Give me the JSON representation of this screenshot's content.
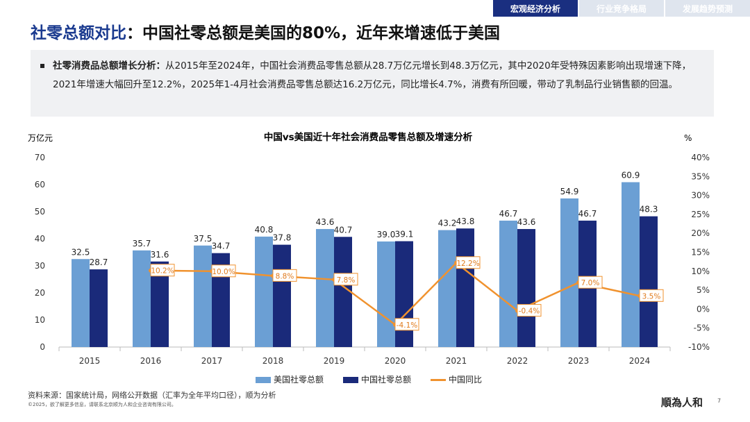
{
  "nav": {
    "tabs": [
      "宏观经济分析",
      "行业竞争格局",
      "发展趋势预测"
    ],
    "active": 0
  },
  "title": {
    "highlight": "社零总额对比",
    "rest": "：中国社零总额是美国的80%，近年来增速低于美国"
  },
  "summary": {
    "label": "社零消费品总额增长分析：",
    "text": "从2015年至2024年，中国社会消费品零售总额从28.7万亿元增长到48.3万亿元，其中2020年受特殊因素影响出现增速下降，2021年增速大幅回升至12.2%，2025年1-4月社会消费品零售总额达16.2万亿元，同比增长4.7%，消费有所回暖，带动了乳制品行业销售额的回温。"
  },
  "chart_data": {
    "type": "bar",
    "title": "中国vs美国近十年社会消费品零售总额及增速分析",
    "ylabel": "万亿元",
    "y2label": "%",
    "ylim": [
      0,
      70
    ],
    "yticks": [
      "0",
      "10",
      "20",
      "30",
      "40",
      "50",
      "60",
      "70"
    ],
    "y2lim": [
      -10,
      40
    ],
    "y2ticks": [
      "-10%",
      "-5%",
      "0%",
      "5%",
      "10%",
      "15%",
      "20%",
      "25%",
      "30%",
      "35%",
      "40%"
    ],
    "categories": [
      "2015",
      "2016",
      "2017",
      "2018",
      "2019",
      "2020",
      "2021",
      "2022",
      "2023",
      "2024"
    ],
    "series": [
      {
        "name": "美国社零总额",
        "type": "bar",
        "color": "#6b9fd4",
        "values": [
          32.5,
          35.7,
          37.5,
          40.8,
          43.6,
          39.0,
          43.2,
          46.7,
          54.9,
          60.9
        ],
        "labels": [
          "32.5",
          "35.7",
          "37.5",
          "40.8",
          "43.6",
          "39.0",
          "43.2",
          "46.7",
          "54.9",
          "60.9"
        ]
      },
      {
        "name": "中国社零总额",
        "type": "bar",
        "color": "#1a2a7a",
        "values": [
          28.7,
          31.6,
          34.7,
          37.8,
          40.7,
          39.1,
          43.8,
          43.6,
          46.7,
          48.3
        ],
        "labels": [
          "28.7",
          "31.6",
          "34.7",
          "37.8",
          "40.7",
          "39.1",
          "43.8",
          "43.6",
          "46.7",
          "48.3"
        ]
      },
      {
        "name": "中国同比",
        "type": "line",
        "axis": "right",
        "color": "#f0922e",
        "values": [
          null,
          10.2,
          10.0,
          8.8,
          7.8,
          -4.1,
          12.2,
          -0.4,
          7.0,
          3.5
        ],
        "labels": [
          "",
          "10.2%",
          "10.0%",
          "8.8%",
          "7.8%",
          "-4.1%",
          "12.2%",
          "-0.4%",
          "7.0%",
          "3.5%"
        ]
      }
    ],
    "legend": "bottom"
  },
  "footer": {
    "source": "资料来源：国家统计局，网络公开数据（汇率为全年平均口径），顺为分析",
    "copyright": "©2025，欲了解更多信息，请联系北京顺为人和企业咨询有限公司。",
    "logo": "順為人和",
    "page": "7"
  }
}
